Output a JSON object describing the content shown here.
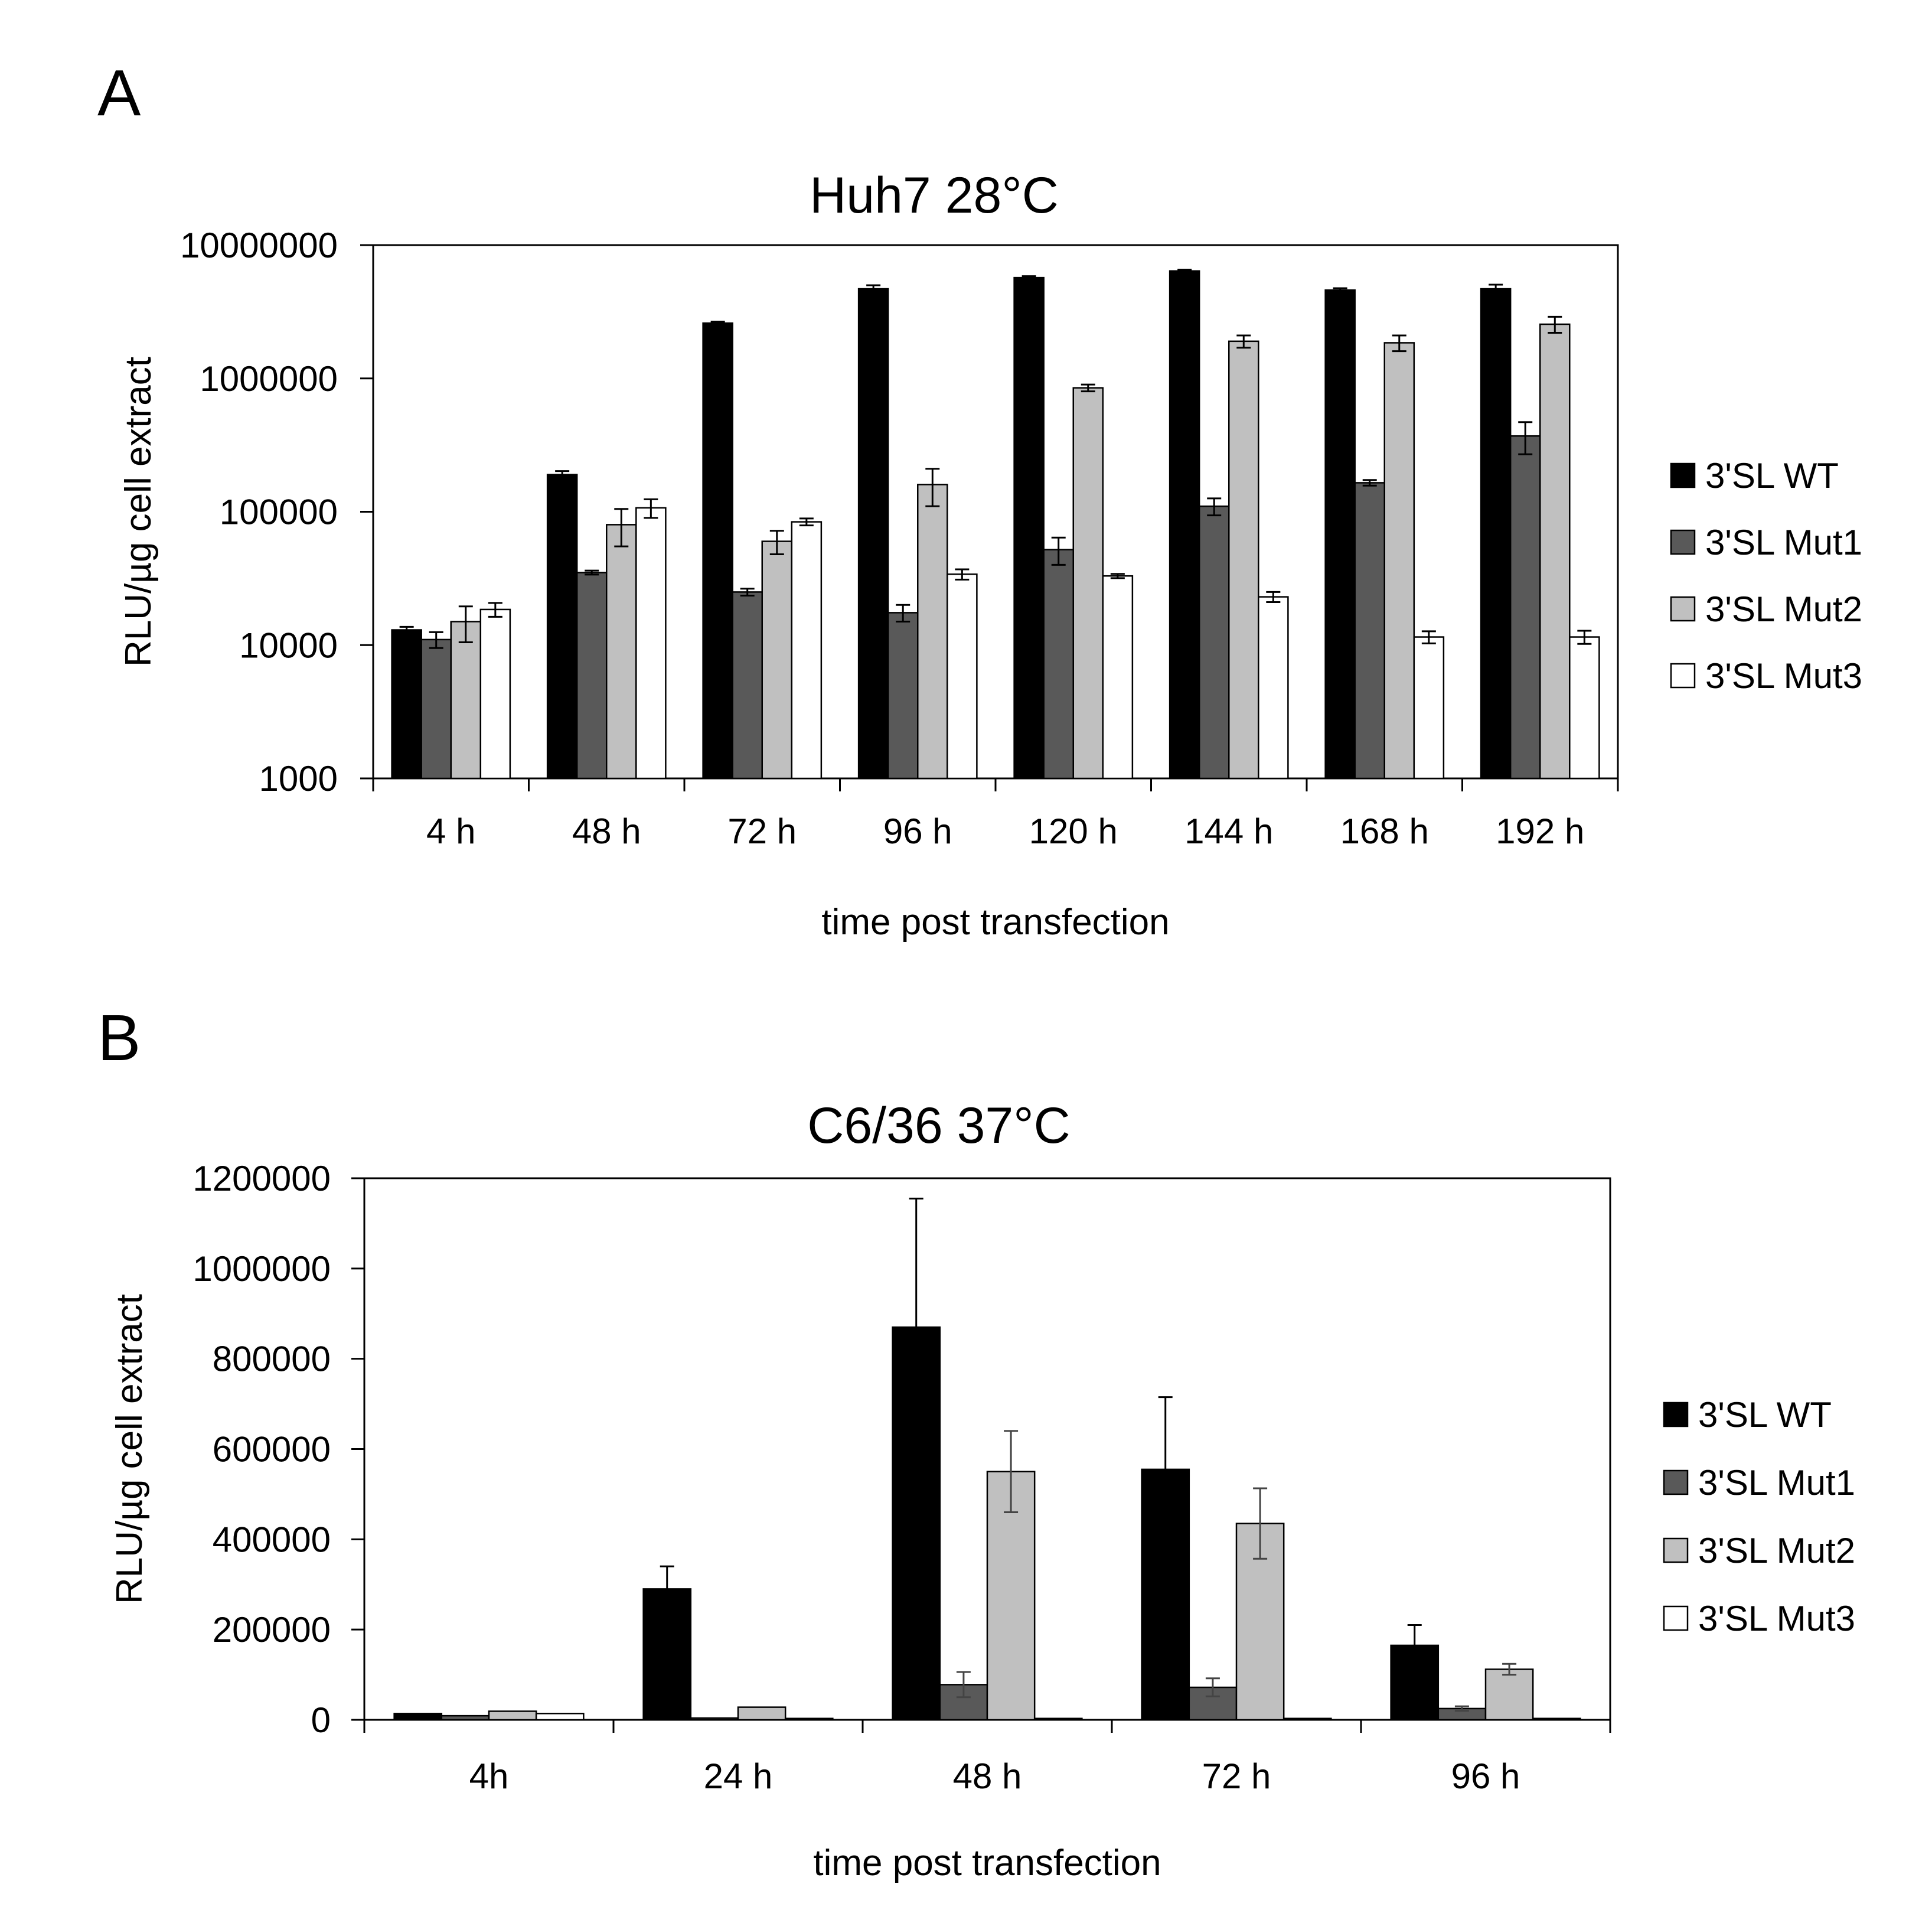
{
  "chart_data": [
    {
      "type": "bar",
      "panel_label": "A",
      "title": "Huh7 28°C",
      "xlabel": "time post transfection",
      "ylabel": "RLU/µg cell extract",
      "yscale": "log",
      "ylim": [
        1000,
        10000000
      ],
      "yticks": [
        1000,
        10000,
        100000,
        1000000,
        10000000
      ],
      "ytick_labels": [
        "1000",
        "10000",
        "100000",
        "1000000",
        "10000000"
      ],
      "grid": false,
      "legend_position": "right",
      "categories": [
        "4 h",
        "48 h",
        "72 h",
        "96 h",
        "120 h",
        "144 h",
        "168 h",
        "192 h"
      ],
      "series": [
        {
          "name": "3'SL WT",
          "color": "#000000",
          "values": [
            13000,
            190000,
            2600000,
            4700000,
            5700000,
            6400000,
            4600000,
            4700000
          ],
          "errors": [
            700,
            12000,
            70000,
            300000,
            150000,
            150000,
            150000,
            350000
          ]
        },
        {
          "name": "3'SL Mut1",
          "color": "#595959",
          "values": [
            11000,
            35000,
            25000,
            17500,
            52000,
            110000,
            165000,
            370000
          ],
          "errors": [
            1500,
            1200,
            1500,
            2500,
            12000,
            16000,
            8000,
            100000
          ]
        },
        {
          "name": "3'SL Mut2",
          "color": "#c0c0c0",
          "values": [
            15000,
            80000,
            60000,
            160000,
            850000,
            1900000,
            1850000,
            2550000
          ],
          "errors": [
            4500,
            25000,
            12000,
            50000,
            50000,
            200000,
            250000,
            350000
          ]
        },
        {
          "name": "3'SL Mut3",
          "color": "#ffffff",
          "values": [
            18500,
            107000,
            84000,
            34000,
            33000,
            23000,
            11500,
            11500
          ],
          "errors": [
            2200,
            17000,
            5000,
            3000,
            1200,
            2000,
            1200,
            1300
          ]
        }
      ]
    },
    {
      "type": "bar",
      "panel_label": "B",
      "title": "C6/36 37°C",
      "xlabel": "time post transfection",
      "ylabel": "RLU/µg cell extract",
      "yscale": "linear",
      "ylim": [
        0,
        1200000
      ],
      "yticks": [
        0,
        200000,
        400000,
        600000,
        800000,
        1000000,
        1200000
      ],
      "ytick_labels": [
        "0",
        "200000",
        "400000",
        "600000",
        "800000",
        "1000000",
        "1200000"
      ],
      "grid": false,
      "legend_position": "right",
      "categories": [
        "4h",
        "24 h",
        "48 h",
        "72 h",
        "96 h"
      ],
      "series": [
        {
          "name": "3'SL WT",
          "color": "#000000",
          "values": [
            14000,
            290000,
            870000,
            555000,
            165000
          ],
          "errors": [
            0,
            50000,
            285000,
            160000,
            45000
          ],
          "error_style": "upper"
        },
        {
          "name": "3'SL Mut1",
          "color": "#595959",
          "values": [
            9000,
            4000,
            78000,
            72000,
            25000
          ],
          "errors": [
            0,
            0,
            28000,
            20000,
            5000
          ],
          "error_style": "both"
        },
        {
          "name": "3'SL Mut2",
          "color": "#c0c0c0",
          "values": [
            19000,
            28000,
            550000,
            435000,
            112000
          ],
          "errors": [
            0,
            0,
            90000,
            78000,
            12000
          ],
          "error_style": "both"
        },
        {
          "name": "3'SL Mut3",
          "color": "#ffffff",
          "values": [
            14000,
            3000,
            3000,
            3000,
            3000
          ],
          "errors": [
            0,
            0,
            0,
            0,
            0
          ],
          "error_style": "both"
        }
      ]
    }
  ]
}
